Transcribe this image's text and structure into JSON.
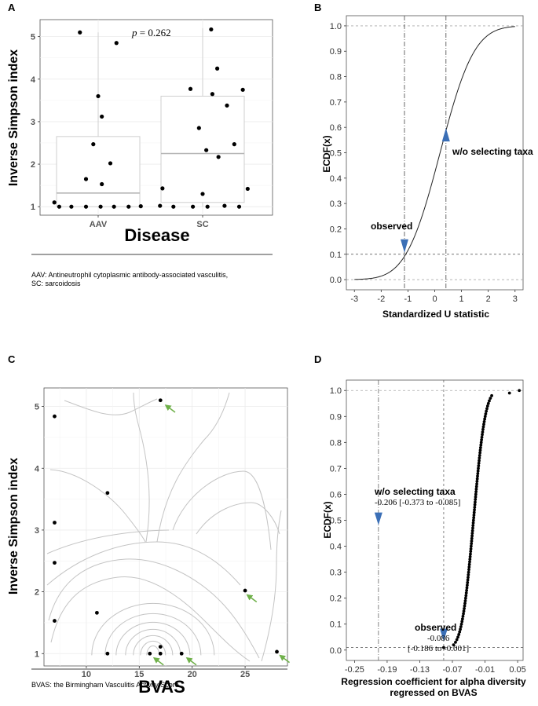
{
  "panels": {
    "A": {
      "label": "A",
      "footnote_line1": "AAV: Antineutrophil cytoplasmic antibody-associated vasculitis,",
      "footnote_line2": "SC: sarcoidosis"
    },
    "B": {
      "label": "B"
    },
    "C": {
      "label": "C",
      "footnote": "BVAS: the Birmingham Vasculitis Activity Score"
    },
    "D": {
      "label": "D"
    }
  },
  "chart_data": [
    {
      "id": "A",
      "type": "box+scatter",
      "title": "",
      "xlabel": "Disease",
      "ylabel": "Inverse Simpson index",
      "categories": [
        "AAV",
        "SC"
      ],
      "yticks": [
        1,
        2,
        3,
        4,
        5
      ],
      "ylim": [
        0.8,
        5.4
      ],
      "annotation": "p = 0.262",
      "annotation_italic": "p",
      "annotation_rest": " = 0.262",
      "boxes": [
        {
          "category": "AAV",
          "q1": 1.0,
          "median": 1.32,
          "q3": 2.65,
          "whisker_low": 1.0,
          "whisker_high": 5.1
        },
        {
          "category": "SC",
          "q1": 1.1,
          "median": 2.25,
          "q3": 3.6,
          "whisker_low": 1.0,
          "whisker_high": 5.2
        }
      ],
      "points": [
        {
          "category": "AAV",
          "offset": -0.15,
          "y": 5.1
        },
        {
          "category": "AAV",
          "offset": 0.15,
          "y": 4.85
        },
        {
          "category": "AAV",
          "offset": 0.0,
          "y": 3.6
        },
        {
          "category": "AAV",
          "offset": 0.03,
          "y": 3.12
        },
        {
          "category": "AAV",
          "offset": -0.04,
          "y": 2.47
        },
        {
          "category": "AAV",
          "offset": 0.1,
          "y": 2.02
        },
        {
          "category": "AAV",
          "offset": -0.1,
          "y": 1.65
        },
        {
          "category": "AAV",
          "offset": 0.03,
          "y": 1.53
        },
        {
          "category": "AAV",
          "offset": -0.36,
          "y": 1.1
        },
        {
          "category": "AAV",
          "offset": -0.32,
          "y": 1.0
        },
        {
          "category": "AAV",
          "offset": -0.22,
          "y": 1.0
        },
        {
          "category": "AAV",
          "offset": -0.1,
          "y": 1.0
        },
        {
          "category": "AAV",
          "offset": 0.02,
          "y": 1.0
        },
        {
          "category": "AAV",
          "offset": 0.13,
          "y": 1.0
        },
        {
          "category": "AAV",
          "offset": 0.25,
          "y": 1.0
        },
        {
          "category": "AAV",
          "offset": 0.35,
          "y": 1.01
        },
        {
          "category": "SC",
          "offset": 0.07,
          "y": 5.17
        },
        {
          "category": "SC",
          "offset": 0.12,
          "y": 4.25
        },
        {
          "category": "SC",
          "offset": -0.1,
          "y": 3.77
        },
        {
          "category": "SC",
          "offset": 0.08,
          "y": 3.65
        },
        {
          "category": "SC",
          "offset": 0.33,
          "y": 3.75
        },
        {
          "category": "SC",
          "offset": 0.2,
          "y": 3.38
        },
        {
          "category": "SC",
          "offset": -0.03,
          "y": 2.85
        },
        {
          "category": "SC",
          "offset": 0.26,
          "y": 2.47
        },
        {
          "category": "SC",
          "offset": 0.03,
          "y": 2.33
        },
        {
          "category": "SC",
          "offset": 0.13,
          "y": 2.17
        },
        {
          "category": "SC",
          "offset": -0.33,
          "y": 1.43
        },
        {
          "category": "SC",
          "offset": 0.37,
          "y": 1.42
        },
        {
          "category": "SC",
          "offset": 0.0,
          "y": 1.3
        },
        {
          "category": "SC",
          "offset": -0.35,
          "y": 1.02
        },
        {
          "category": "SC",
          "offset": -0.24,
          "y": 1.0
        },
        {
          "category": "SC",
          "offset": -0.08,
          "y": 1.0
        },
        {
          "category": "SC",
          "offset": 0.04,
          "y": 1.0
        },
        {
          "category": "SC",
          "offset": 0.18,
          "y": 1.02
        },
        {
          "category": "SC",
          "offset": 0.3,
          "y": 1.0
        }
      ]
    },
    {
      "id": "B",
      "type": "line",
      "title": "",
      "xlabel": "Standardized U statistic",
      "ylabel": "ECDF(x)",
      "xlim": [
        -3.3,
        3.3
      ],
      "ylim": [
        -0.04,
        1.04
      ],
      "xticks": [
        -3,
        -2,
        -1,
        0,
        1,
        2,
        3
      ],
      "yticks": [
        0.0,
        0.1,
        0.2,
        0.3,
        0.4,
        0.5,
        0.6,
        0.7,
        0.8,
        0.9,
        1.0
      ],
      "yticklabels": [
        "0.0",
        "0.1",
        "0.2",
        "0.3",
        "0.4",
        "0.5",
        "0.6",
        "0.7",
        "0.8",
        "0.9",
        "1.0"
      ],
      "curve": "normal_cdf",
      "curve_mean": 0.2,
      "curve_sd": 1.0,
      "vlines": [
        {
          "x": -1.13,
          "style": "dash-dot"
        },
        {
          "x": 0.42,
          "style": "dash-dot"
        }
      ],
      "hlines": [
        {
          "y": 0.1,
          "style": "dashed",
          "from_x": -3.3,
          "to_x": -1.13
        },
        {
          "y": 0.1,
          "style": "dashed",
          "from_x": -1.13,
          "to_x": 3.3
        },
        {
          "y": 0.0,
          "style": "dashed"
        },
        {
          "y": 1.0,
          "style": "dashed"
        }
      ],
      "markers": [
        {
          "x": -1.13,
          "y": 0.1,
          "label": "observed"
        },
        {
          "x": 0.42,
          "y": 0.6,
          "label": "w/o selecting taxa"
        }
      ]
    },
    {
      "id": "C",
      "type": "scatter+contour",
      "title": "",
      "xlabel": "BVAS",
      "ylabel": "Inverse Simpson index",
      "xlim": [
        6,
        29
      ],
      "ylim": [
        0.8,
        5.3
      ],
      "xticks": [
        10,
        15,
        20,
        25
      ],
      "yticks": [
        1,
        2,
        3,
        4,
        5
      ],
      "points": [
        {
          "x": 7,
          "y": 4.84
        },
        {
          "x": 7,
          "y": 3.12
        },
        {
          "x": 7,
          "y": 2.47
        },
        {
          "x": 7,
          "y": 1.53
        },
        {
          "x": 11,
          "y": 1.66
        },
        {
          "x": 12,
          "y": 3.6
        },
        {
          "x": 12,
          "y": 1.0
        },
        {
          "x": 16,
          "y": 1.0
        },
        {
          "x": 17,
          "y": 5.1
        },
        {
          "x": 17,
          "y": 1.11
        },
        {
          "x": 17,
          "y": 1.0
        },
        {
          "x": 19,
          "y": 1.0
        },
        {
          "x": 25,
          "y": 2.02
        },
        {
          "x": 28,
          "y": 1.03
        }
      ],
      "arrows": [
        {
          "x": 17.5,
          "y": 5.02
        },
        {
          "x": 25.2,
          "y": 1.95
        },
        {
          "x": 16.4,
          "y": 0.93
        },
        {
          "x": 19.5,
          "y": 0.93
        },
        {
          "x": 28.3,
          "y": 0.97
        }
      ]
    },
    {
      "id": "D",
      "type": "scatter",
      "title": "",
      "xlabel": "Regression coefficient for alpha diversity",
      "xlabel2": "regressed on BVAS",
      "ylabel": "ECDF(x)",
      "xlim": [
        -0.265,
        0.06
      ],
      "ylim": [
        -0.04,
        1.04
      ],
      "xticks": [
        -0.25,
        -0.19,
        -0.13,
        -0.07,
        -0.01,
        0.05
      ],
      "xticklabels": [
        "-0.25",
        "-0.19",
        "-0.13",
        "-0.07",
        "-0.01",
        "0.05"
      ],
      "yticks": [
        0.0,
        0.1,
        0.2,
        0.3,
        0.4,
        0.5,
        0.6,
        0.7,
        0.8,
        0.9,
        1.0
      ],
      "yticklabels": [
        "0.0",
        "0.1",
        "0.2",
        "0.3",
        "0.4",
        "0.5",
        "0.6",
        "0.7",
        "0.8",
        "0.9",
        "1.0"
      ],
      "n_points": 100,
      "distribution_mean": -0.031,
      "distribution_sd": 0.017,
      "vlines": [
        {
          "x": -0.206,
          "style": "dash-dot"
        },
        {
          "x": -0.086,
          "style": "dashed"
        }
      ],
      "hlines": [
        {
          "y": 0.01,
          "style": "dashed"
        },
        {
          "y": 1.0,
          "style": "dashed"
        }
      ],
      "markers": [
        {
          "x": -0.206,
          "y": 0.53,
          "label": "w/o selecting taxa",
          "sublabel": "-0.206 [-0.373 to -0.085]"
        },
        {
          "x": -0.086,
          "y": 0.04,
          "label": "observed",
          "sublabel": "-0.086",
          "sublabel2": "[-0.186 to -0.001]"
        }
      ]
    }
  ],
  "colors": {
    "marker_blue": "#3b6fb6",
    "arrow_green": "#6fb04a",
    "grid": "#ebebeb",
    "box": "#cfcfcf",
    "median": "#b5b5b5",
    "contour": "#c4c4c4"
  }
}
